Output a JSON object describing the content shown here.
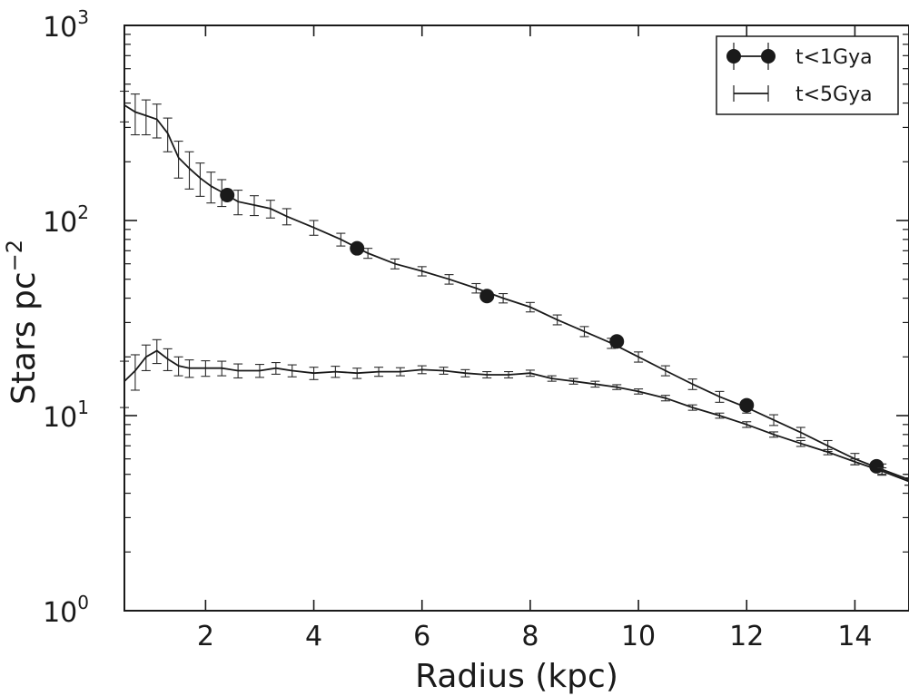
{
  "chart_data": {
    "type": "line",
    "xlabel": "Radius (kpc)",
    "ylabel": "Stars pc",
    "ylabel_superscript": "−2",
    "xlim": [
      0.5,
      15.0
    ],
    "ylim": [
      1,
      1000
    ],
    "yscale": "log",
    "grid": false,
    "legend_position": "top-right",
    "x_ticks": [
      {
        "value": 2,
        "label": "2"
      },
      {
        "value": 4,
        "label": "4"
      },
      {
        "value": 6,
        "label": "6"
      },
      {
        "value": 8,
        "label": "8"
      },
      {
        "value": 10,
        "label": "10"
      },
      {
        "value": 12,
        "label": "12"
      },
      {
        "value": 14,
        "label": "14"
      }
    ],
    "y_ticks": [
      {
        "value": 1,
        "base": "10",
        "exp": "0"
      },
      {
        "value": 10,
        "base": "10",
        "exp": "1"
      },
      {
        "value": 100,
        "base": "10",
        "exp": "2"
      },
      {
        "value": 1000,
        "base": "10",
        "exp": "3"
      }
    ],
    "series": [
      {
        "name": "t<1Gya",
        "marker": "circle",
        "color": "#1a1a1a",
        "x": [
          0.5,
          0.7,
          0.9,
          1.1,
          1.3,
          1.5,
          1.7,
          1.9,
          2.1,
          2.3,
          2.6,
          2.9,
          3.2,
          3.5,
          4.0,
          4.5,
          5.0,
          5.5,
          6.0,
          6.5,
          7.0,
          7.5,
          8.0,
          8.5,
          9.0,
          9.5,
          10.0,
          10.5,
          11.0,
          11.5,
          12.0,
          12.5,
          13.0,
          13.5,
          14.0,
          14.5,
          15.0
        ],
        "y": [
          390,
          360,
          345,
          330,
          280,
          210,
          185,
          165,
          150,
          140,
          125,
          120,
          115,
          105,
          92,
          80,
          68,
          60,
          55,
          50,
          45,
          40,
          36,
          31,
          27,
          23.5,
          20,
          17,
          14.5,
          12.5,
          11,
          9.5,
          8.2,
          7,
          6,
          5.3,
          4.7
        ],
        "errors": [
          70,
          85,
          70,
          65,
          55,
          45,
          40,
          32,
          27,
          22,
          18,
          14,
          12,
          10,
          8,
          6,
          4,
          3.5,
          3,
          2.8,
          2.5,
          2.2,
          2,
          1.8,
          1.6,
          1.4,
          1.2,
          1,
          0.9,
          0.8,
          0.7,
          0.6,
          0.5,
          0.45,
          0.4,
          0.35,
          0.3
        ],
        "markers_x": [
          2.4,
          4.8,
          7.2,
          9.6,
          12.0,
          14.4
        ],
        "markers_y": [
          135,
          72,
          41,
          24,
          11.3,
          5.5
        ]
      },
      {
        "name": "t<5Gya",
        "marker": "none",
        "color": "#1a1a1a",
        "x": [
          0.5,
          0.7,
          0.9,
          1.1,
          1.3,
          1.5,
          1.7,
          2.0,
          2.3,
          2.6,
          3.0,
          3.3,
          3.6,
          4.0,
          4.4,
          4.8,
          5.2,
          5.6,
          6.0,
          6.4,
          6.8,
          7.2,
          7.6,
          8.0,
          8.4,
          8.8,
          9.2,
          9.6,
          10.0,
          10.5,
          11.0,
          11.5,
          12.0,
          12.5,
          13.0,
          13.5,
          14.0,
          14.5,
          15.0
        ],
        "y": [
          15,
          17,
          20,
          21.5,
          19.5,
          18,
          17.5,
          17.5,
          17.5,
          17,
          17,
          17.5,
          17,
          16.5,
          16.8,
          16.5,
          16.8,
          16.8,
          17.2,
          17,
          16.5,
          16.2,
          16.2,
          16.5,
          15.5,
          15,
          14.5,
          14,
          13.3,
          12.3,
          11,
          10,
          9,
          8,
          7.2,
          6.5,
          5.8,
          5.2,
          4.6
        ],
        "errors": [
          4,
          3.5,
          3,
          3,
          2.5,
          2,
          1.8,
          1.6,
          1.5,
          1.4,
          1.3,
          1.2,
          1.2,
          1.2,
          1.1,
          1,
          0.9,
          0.8,
          0.8,
          0.7,
          0.7,
          0.6,
          0.6,
          0.6,
          0.5,
          0.5,
          0.5,
          0.4,
          0.4,
          0.4,
          0.35,
          0.3,
          0.3,
          0.25,
          0.25,
          0.2,
          0.2,
          0.2,
          0.2
        ]
      }
    ]
  }
}
